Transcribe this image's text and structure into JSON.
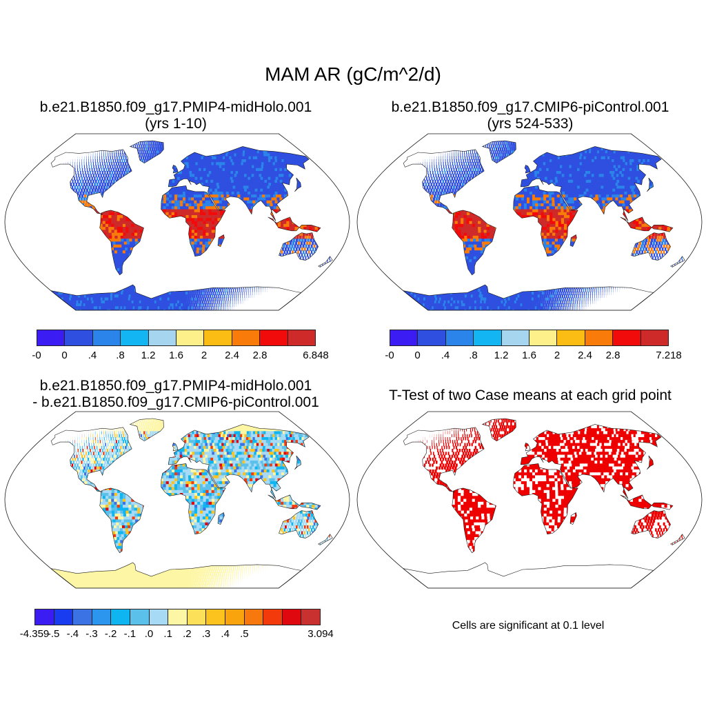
{
  "figure": {
    "title": "MAM AR (gC/m^2/d)"
  },
  "colors": {
    "ocean": "#ffffff",
    "outline": "#1a1a1a",
    "significant": "#ee0000",
    "scale_a": [
      "#3b1cf2",
      "#2e4fe0",
      "#2b84ea",
      "#13b6f2",
      "#a6d6ef",
      "#fdf08a",
      "#fbbd13",
      "#f97b0a",
      "#f20b0b",
      "#cf2a2a"
    ],
    "scale_b": [
      "#3b1cf2",
      "#1a3cf0",
      "#3b72e4",
      "#2c96ef",
      "#0fb5f0",
      "#5cc1ea",
      "#a7daf4",
      "#fdf6a4",
      "#fde05a",
      "#fcc21e",
      "#f9a40c",
      "#f7780c",
      "#f23a0a",
      "#e0080f",
      "#c93030"
    ]
  },
  "panels": [
    {
      "id": "midholo",
      "title_line1": "b.e21.B1850.f09_g17.PMIP4-midHolo.001",
      "title_line2": "(yrs 1-10)",
      "map_type": "filled-field",
      "colorbar": {
        "labels": [
          "-0",
          "0",
          ".4",
          ".8",
          "1.2",
          "1.6",
          "2",
          "2.4",
          "2.8",
          "",
          "6.848"
        ]
      }
    },
    {
      "id": "picontrol",
      "title_line1": "b.e21.B1850.f09_g17.CMIP6-piControl.001",
      "title_line2": "(yrs 524-533)",
      "map_type": "filled-field",
      "colorbar": {
        "labels": [
          "-0",
          "0",
          ".4",
          ".8",
          "1.2",
          "1.6",
          "2",
          "2.4",
          "2.8",
          "",
          "7.218"
        ]
      }
    },
    {
      "id": "difference",
      "title_line1": "b.e21.B1850.f09_g17.PMIP4-midHolo.001",
      "title_line2": "- b.e21.B1850.f09_g17.CMIP6-piControl.001",
      "map_type": "difference-field",
      "colorbar": {
        "labels": [
          "-4.359",
          "-.5",
          "-.4",
          "-.3",
          "-.2",
          "-.1",
          ".0",
          ".1",
          ".2",
          ".3",
          ".4",
          ".5",
          "",
          "",
          "",
          "3.094"
        ]
      }
    },
    {
      "id": "ttest",
      "title_line1": "T-Test of two Case means at each grid point",
      "map_type": "significance",
      "note": "Cells are significant at 0.1 level"
    }
  ]
}
